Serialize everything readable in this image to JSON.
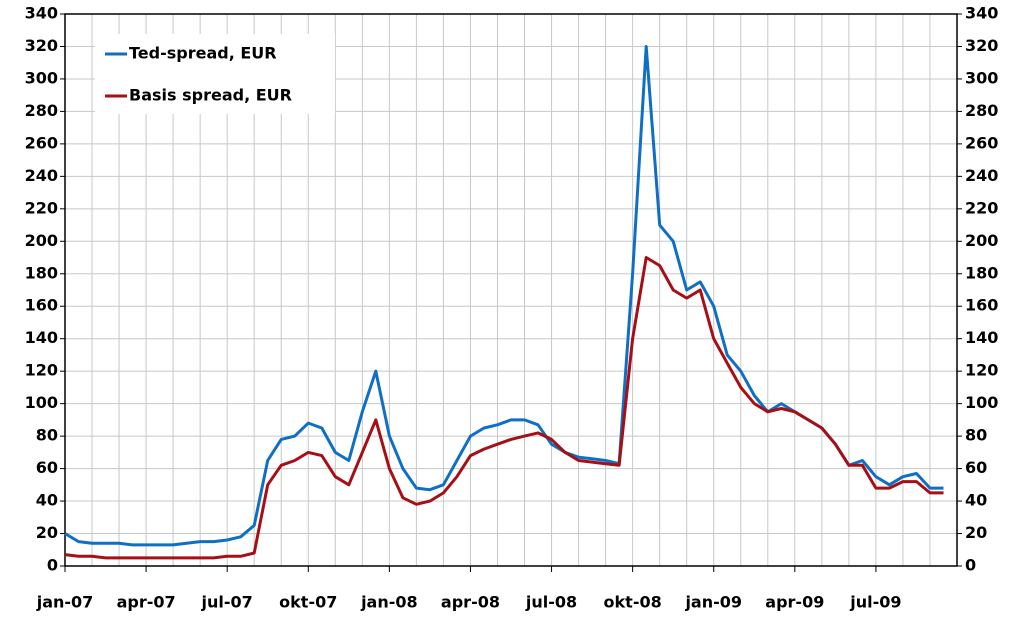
{
  "chart_data": {
    "type": "line",
    "categories": [
      "jan-07",
      null,
      null,
      null,
      null,
      null,
      "apr-07",
      null,
      null,
      null,
      null,
      null,
      "jul-07",
      null,
      null,
      null,
      null,
      null,
      "okt-07",
      null,
      null,
      null,
      null,
      null,
      "jan-08",
      null,
      null,
      null,
      null,
      null,
      "apr-08",
      null,
      null,
      null,
      null,
      null,
      "jul-08",
      null,
      null,
      null,
      null,
      null,
      "okt-08",
      null,
      null,
      null,
      null,
      null,
      "jan-09",
      null,
      null,
      null,
      null,
      null,
      "apr-09",
      null,
      null,
      null,
      null,
      null,
      "jul-09",
      null,
      null,
      null,
      null,
      null
    ],
    "series": [
      {
        "name": "Ted-spread, EUR",
        "color": "#0f6fc6",
        "values": [
          20,
          15,
          14,
          14,
          14,
          13,
          13,
          13,
          13,
          14,
          15,
          15,
          16,
          18,
          25,
          65,
          78,
          80,
          88,
          85,
          70,
          65,
          95,
          120,
          80,
          60,
          48,
          47,
          50,
          65,
          80,
          85,
          87,
          90,
          90,
          87,
          75,
          70,
          67,
          66,
          65,
          63,
          180,
          320,
          210,
          200,
          170,
          175,
          160,
          130,
          120,
          105,
          95,
          100,
          95,
          90,
          85,
          75,
          62,
          65,
          55,
          50,
          55,
          57,
          48,
          48
        ]
      },
      {
        "name": "Basis spread, EUR",
        "color": "#a50f15",
        "values": [
          7,
          6,
          6,
          5,
          5,
          5,
          5,
          5,
          5,
          5,
          5,
          5,
          6,
          6,
          8,
          50,
          62,
          65,
          70,
          68,
          55,
          50,
          70,
          90,
          60,
          42,
          38,
          40,
          45,
          55,
          68,
          72,
          75,
          78,
          80,
          82,
          78,
          70,
          65,
          64,
          63,
          62,
          140,
          190,
          185,
          170,
          165,
          170,
          140,
          125,
          110,
          100,
          95,
          97,
          95,
          90,
          85,
          75,
          62,
          62,
          48,
          48,
          52,
          52,
          45,
          45
        ]
      }
    ],
    "ylim": [
      0,
      340
    ],
    "yticks": [
      0,
      20,
      40,
      60,
      80,
      100,
      120,
      140,
      160,
      180,
      200,
      220,
      240,
      260,
      280,
      300,
      320,
      340
    ],
    "grid": true,
    "legend": "upper left"
  }
}
